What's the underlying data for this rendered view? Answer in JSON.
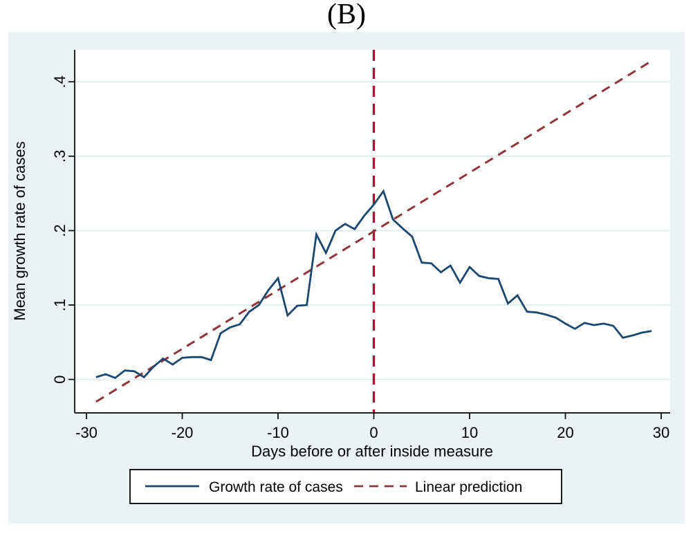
{
  "colors": {
    "outer_background": "#eaf2f3",
    "plot_background": "#ffffff",
    "gridline": "#e0ebed",
    "axis": "#000000",
    "growth_line": "#1a476f",
    "prediction_line": "#90353b",
    "event_line": "#c10534"
  },
  "legend": {
    "items": [
      {
        "label": "Growth rate of cases",
        "style": "solid",
        "color": "#1a476f"
      },
      {
        "label": "Linear prediction",
        "style": "dashed",
        "color": "#90353b"
      }
    ]
  },
  "chart_data": {
    "type": "line",
    "title": "(B)",
    "xlabel": "Days before or after inside measure",
    "ylabel": "Mean growth rate of cases",
    "xlim": [
      -31.23,
      30.94
    ],
    "ylim": [
      -0.045,
      0.443
    ],
    "grid": "horizontal",
    "legend_position": "bottom",
    "xticks": {
      "values": [
        -30,
        -20,
        -10,
        0,
        10,
        20,
        30
      ],
      "labels": [
        "-30",
        "-20",
        "-10",
        "0",
        "10",
        "20",
        "30"
      ]
    },
    "yticks": {
      "values": [
        0,
        0.1,
        0.2,
        0.3,
        0.4
      ],
      "labels": [
        "0",
        ".1",
        ".2",
        ".3",
        ".4"
      ]
    },
    "event_line": {
      "x": 0,
      "color": "#c10534",
      "style": "dashed"
    },
    "series": [
      {
        "name": "Growth rate of cases",
        "style": "solid",
        "color": "#1a476f",
        "x": [
          -29,
          -28,
          -27,
          -26,
          -25,
          -24,
          -23,
          -22,
          -21,
          -20,
          -19,
          -18,
          -17,
          -16,
          -15,
          -14,
          -13,
          -12,
          -11,
          -10,
          -9,
          -8,
          -7,
          -6,
          -5,
          -4,
          -3,
          -2,
          -1,
          0,
          1,
          2,
          3,
          4,
          5,
          6,
          7,
          8,
          9,
          10,
          11,
          12,
          13,
          14,
          15,
          16,
          17,
          18,
          19,
          20,
          21,
          22,
          23,
          24,
          25,
          26,
          27,
          28,
          29
        ],
        "y": [
          0.003,
          0.007,
          0.002,
          0.012,
          0.011,
          0.003,
          0.017,
          0.028,
          0.02,
          0.029,
          0.03,
          0.03,
          0.026,
          0.062,
          0.07,
          0.074,
          0.091,
          0.1,
          0.12,
          0.136,
          0.086,
          0.099,
          0.1,
          0.195,
          0.17,
          0.2,
          0.209,
          0.202,
          0.22,
          0.235,
          0.253,
          0.215,
          0.203,
          0.192,
          0.157,
          0.156,
          0.144,
          0.153,
          0.13,
          0.151,
          0.139,
          0.136,
          0.135,
          0.102,
          0.113,
          0.091,
          0.09,
          0.087,
          0.083,
          0.075,
          0.068,
          0.076,
          0.073,
          0.075,
          0.072,
          0.056,
          0.059,
          0.063,
          0.065
        ]
      },
      {
        "name": "Linear prediction",
        "style": "dashed",
        "color": "#90353b",
        "x": [
          -29,
          29
        ],
        "y": [
          -0.03,
          0.428
        ]
      }
    ]
  }
}
